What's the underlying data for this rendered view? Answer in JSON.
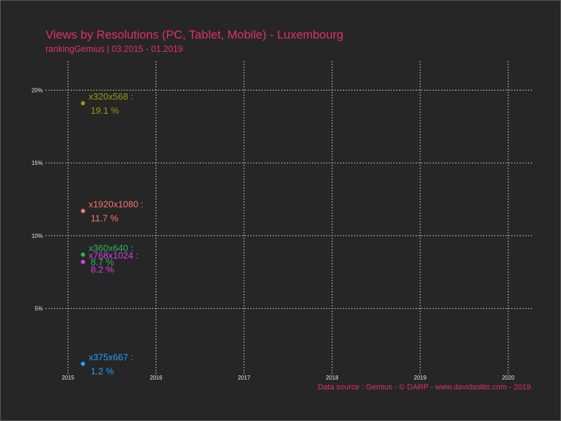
{
  "chart_data": {
    "type": "scatter",
    "title": "Views by Resolutions (PC, Tablet, Mobile) - Luxembourg",
    "subtitle": "rankingGemius | 03.2015 - 01.2019",
    "caption": "Data source : Gemius - © DARP - www.davidsolito.com - 2019",
    "xlabel": "",
    "ylabel": "",
    "x_ticks": [
      "2015",
      "2016",
      "2017",
      "2018",
      "2019",
      "2020"
    ],
    "y_ticks": [
      "5%",
      "10%",
      "15%",
      "20%"
    ],
    "xlim": [
      2015,
      2020.05
    ],
    "ylim": [
      0.5,
      22
    ],
    "grid": true,
    "points": [
      {
        "name": "x320x568 :",
        "label": "19.1 %",
        "x": 2015.17,
        "y": 19.1,
        "color": "#9a9a10"
      },
      {
        "name": "x1920x1080 :",
        "label": "11.7 %",
        "x": 2015.17,
        "y": 11.7,
        "color": "#f8766d"
      },
      {
        "name": "x360x640 :",
        "label": "8.7 %",
        "x": 2015.17,
        "y": 8.7,
        "color": "#2bb55a"
      },
      {
        "name": "x768x1024 :",
        "label": "8.2 %",
        "x": 2015.17,
        "y": 8.2,
        "color": "#d63ee8"
      },
      {
        "name": "x375x667 :",
        "label": "1.2 %",
        "x": 2015.17,
        "y": 1.2,
        "color": "#1ea3ff"
      }
    ]
  }
}
